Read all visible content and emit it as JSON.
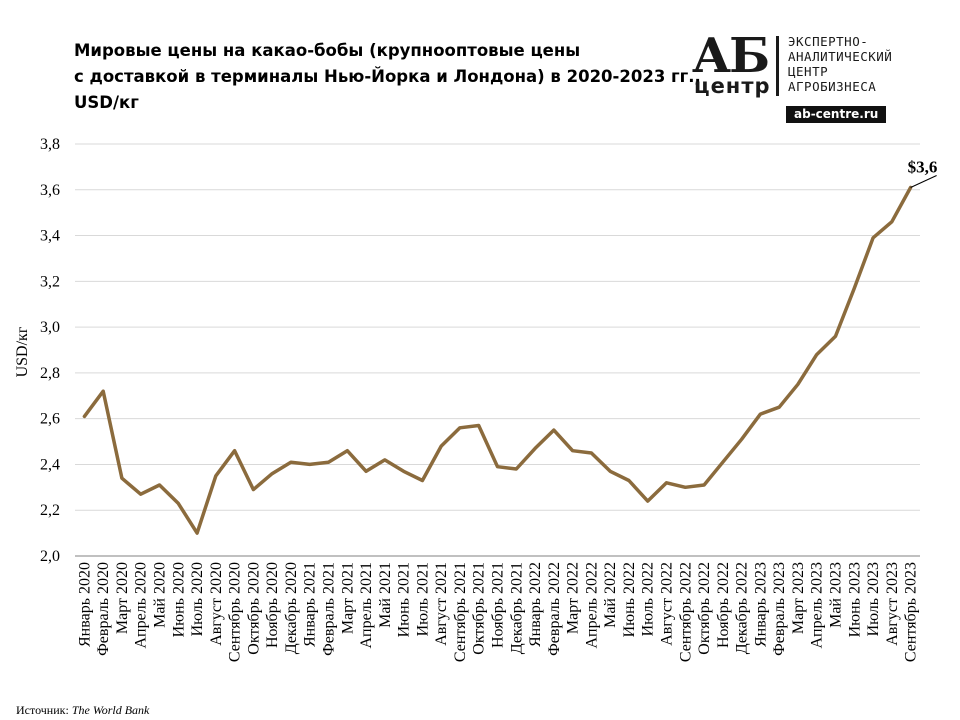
{
  "title": {
    "line1": "Мировые цены на какао-бобы (крупнооптовые цены",
    "line2": "с доставкой в терминалы Нью-Йорка и Лондона) в 2020-2023 гг.,",
    "line3": "USD/кг"
  },
  "logo": {
    "ab": "АБ",
    "center": "центр",
    "line1": "ЭКСПЕРТНО-",
    "line2": "АНАЛИТИЧЕСКИЙ",
    "line3": "ЦЕНТР",
    "line4": "АГРОБИЗНЕСА",
    "site": "ab-centre.ru"
  },
  "source": {
    "label": "Источник:",
    "name": "The World Bank"
  },
  "colors": {
    "line": "#8b6b3d",
    "grid": "#d9d9d9",
    "axis": "#808080"
  },
  "chart_data": {
    "type": "line",
    "title": "Мировые цены на какао-бобы (крупнооптовые цены с доставкой в терминалы Нью-Йорка и Лондона) в 2020-2023 гг., USD/кг",
    "xlabel": "",
    "ylabel": "USD/кг",
    "ylim": [
      2.0,
      3.8
    ],
    "yticks": [
      "2,0",
      "2,2",
      "2,4",
      "2,6",
      "2,8",
      "3,0",
      "3,2",
      "3,4",
      "3,6",
      "3,8"
    ],
    "grid": true,
    "categories": [
      "Январь 2020",
      "Февраль 2020",
      "Март 2020",
      "Апрель 2020",
      "Май 2020",
      "Июнь 2020",
      "Июль 2020",
      "Август 2020",
      "Сентябрь 2020",
      "Октябрь 2020",
      "Ноябрь 2020",
      "Декабрь 2020",
      "Январь 2021",
      "Февраль 2021",
      "Март 2021",
      "Апрель 2021",
      "Май 2021",
      "Июнь 2021",
      "Июль 2021",
      "Август 2021",
      "Сентябрь 2021",
      "Октябрь 2021",
      "Ноябрь 2021",
      "Декабрь 2021",
      "Январь 2022",
      "Февраль 2022",
      "Март 2022",
      "Апрель 2022",
      "Май 2022",
      "Июнь 2022",
      "Июль 2022",
      "Август 2022",
      "Сентябрь 2022",
      "Октябрь 2022",
      "Ноябрь 2022",
      "Декабрь 2022",
      "Январь 2023",
      "Февраль 2023",
      "Март 2023",
      "Апрель 2023",
      "Май 2023",
      "Июнь 2023",
      "Июль 2023",
      "Август 2023",
      "Сентябрь 2023"
    ],
    "values": [
      2.61,
      2.72,
      2.34,
      2.27,
      2.31,
      2.23,
      2.1,
      2.35,
      2.46,
      2.29,
      2.36,
      2.41,
      2.4,
      2.41,
      2.46,
      2.37,
      2.42,
      2.37,
      2.33,
      2.48,
      2.56,
      2.57,
      2.39,
      2.38,
      2.47,
      2.55,
      2.46,
      2.45,
      2.37,
      2.33,
      2.24,
      2.32,
      2.3,
      2.31,
      2.41,
      2.51,
      2.62,
      2.65,
      2.75,
      2.88,
      2.96,
      3.17,
      3.39,
      3.46,
      3.61
    ],
    "annotation": {
      "text": "$3,6",
      "point_index": 44
    }
  }
}
